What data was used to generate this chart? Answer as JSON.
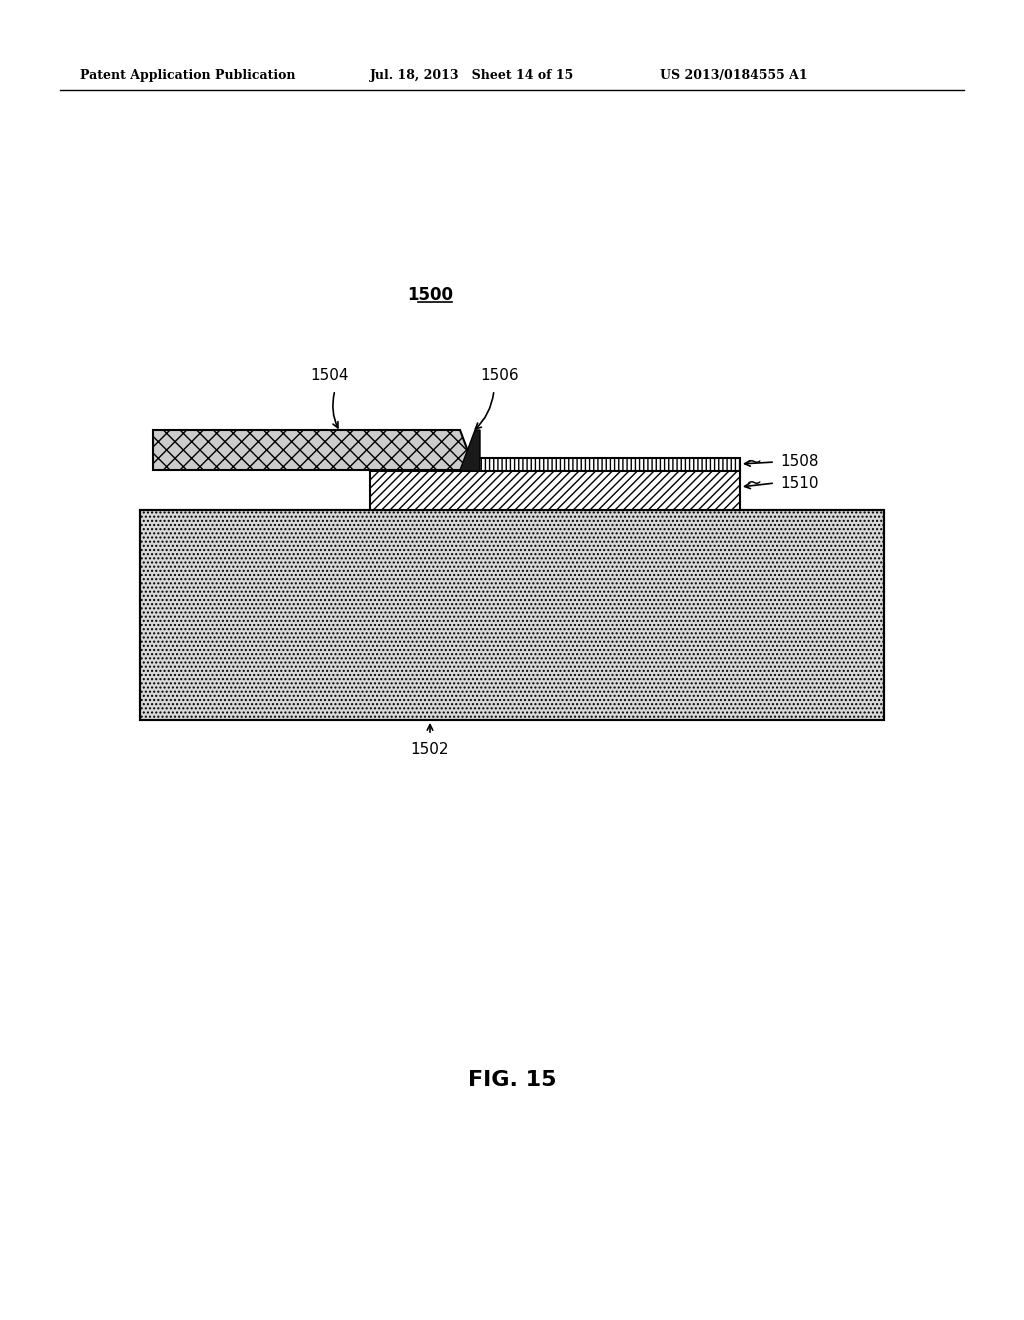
{
  "header_left": "Patent Application Publication",
  "header_mid": "Jul. 18, 2013   Sheet 14 of 15",
  "header_right": "US 2013/0184555 A1",
  "fig_label": "FIG. 15",
  "label_1500": "1500",
  "label_1502": "1502",
  "label_1504": "1504",
  "label_1506": "1506",
  "label_1508": "1508",
  "label_1510": "1510",
  "bg_color": "#ffffff"
}
